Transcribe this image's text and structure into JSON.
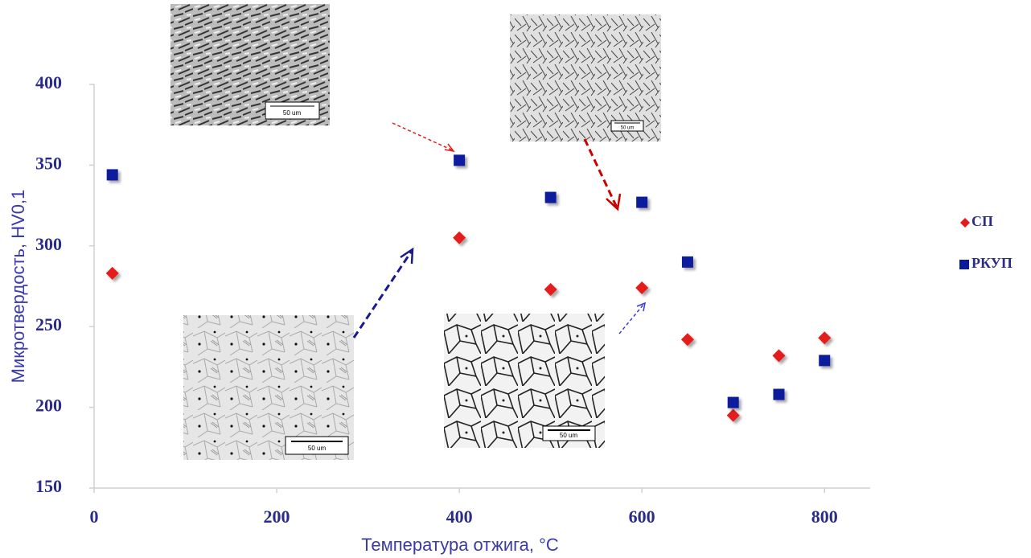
{
  "chart_data": {
    "type": "scatter",
    "xlabel": "Температура отжига, °C",
    "ylabel": "Микротвердость, HV0,1",
    "xlim": [
      0,
      850
    ],
    "ylim": [
      150,
      400
    ],
    "xticks": [
      0,
      200,
      400,
      600,
      800
    ],
    "yticks": [
      150,
      200,
      250,
      300,
      350,
      400
    ],
    "legend": "right",
    "series": [
      {
        "name": "СП",
        "color": "#e41a1c",
        "marker": "diamond",
        "x": [
          20,
          400,
          500,
          600,
          650,
          700,
          750,
          800
        ],
        "values": [
          283,
          305,
          273,
          274,
          242,
          195,
          232,
          243
        ]
      },
      {
        "name": "РКУП",
        "color": "#0a1a9c",
        "marker": "square",
        "x": [
          20,
          400,
          500,
          600,
          650,
          700,
          750,
          800
        ],
        "values": [
          344,
          353,
          330,
          327,
          290,
          203,
          208,
          229
        ]
      }
    ]
  },
  "insets": [
    {
      "scale_label": "50 um"
    },
    {
      "scale_label": "50 um"
    },
    {
      "scale_label": "50 um"
    },
    {
      "scale_label": "50 um"
    }
  ]
}
